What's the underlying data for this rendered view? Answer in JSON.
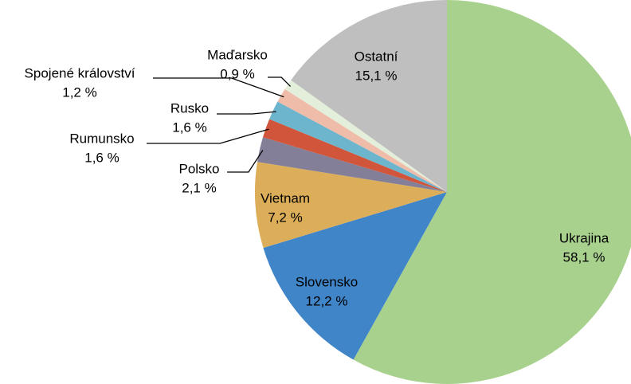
{
  "chart_data": {
    "type": "pie",
    "categories": [
      "Ukrajina",
      "Slovensko",
      "Vietnam",
      "Polsko",
      "Rumunsko",
      "Rusko",
      "Spojené království",
      "Maďarsko",
      "Ostatní"
    ],
    "values": [
      58.1,
      12.2,
      7.2,
      2.1,
      1.6,
      1.6,
      1.2,
      0.9,
      15.1
    ],
    "value_labels": [
      "58,1 %",
      "12,2 %",
      "7,2 %",
      "2,1 %",
      "1,6 %",
      "1,6 %",
      "1,2 %",
      "0,9 %",
      "15,1 %"
    ],
    "colors": [
      "#a9d18e",
      "#3f85c8",
      "#dcae5a",
      "#847f98",
      "#d0553a",
      "#6cb5cc",
      "#f0bcaa",
      "#e3efda",
      "#bfbfbf"
    ]
  }
}
